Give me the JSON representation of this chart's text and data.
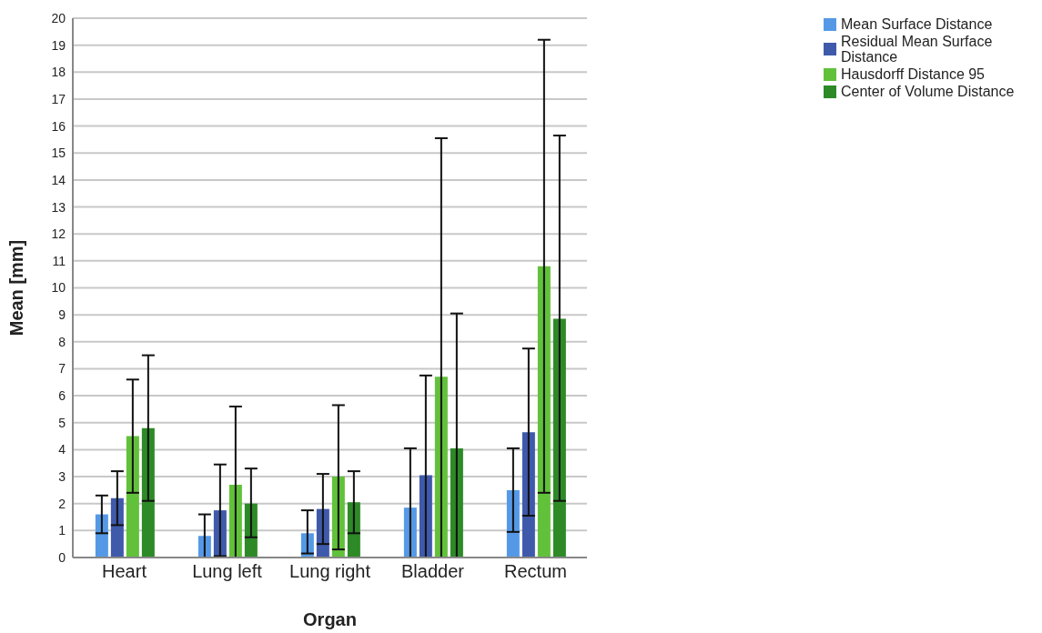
{
  "chart_data": {
    "type": "bar",
    "xlabel": "Organ",
    "ylabel": "Mean [mm]",
    "categories": [
      "Heart",
      "Lung left",
      "Lung right",
      "Bladder",
      "Rectum"
    ],
    "series": [
      {
        "name": "Mean Surface Distance",
        "color": "#5599e6",
        "values": [
          1.6,
          0.8,
          0.9,
          1.85,
          2.5
        ],
        "errors": [
          [
            0.9,
            2.3
          ],
          [
            0,
            1.6
          ],
          [
            0.15,
            1.75
          ],
          [
            0,
            4.05
          ],
          [
            0.95,
            4.05
          ]
        ]
      },
      {
        "name": "Residual Mean Surface Distance",
        "color": "#3f5aab",
        "values": [
          2.2,
          1.75,
          1.8,
          3.05,
          4.65
        ],
        "errors": [
          [
            1.2,
            3.2
          ],
          [
            0.05,
            3.45
          ],
          [
            0.5,
            3.1
          ],
          [
            0,
            6.75
          ],
          [
            1.55,
            7.75
          ]
        ]
      },
      {
        "name": "Hausdorff Distance 95",
        "color": "#62c13a",
        "values": [
          4.5,
          2.7,
          3.0,
          6.7,
          10.8
        ],
        "errors": [
          [
            2.4,
            6.6
          ],
          [
            0,
            5.6
          ],
          [
            0.3,
            5.65
          ],
          [
            0,
            15.55
          ],
          [
            2.4,
            19.2
          ]
        ]
      },
      {
        "name": "Center of Volume Distance",
        "color": "#2d8a27",
        "values": [
          4.8,
          2.0,
          2.05,
          4.05,
          8.85
        ],
        "errors": [
          [
            2.1,
            7.5
          ],
          [
            0.75,
            3.3
          ],
          [
            0.9,
            3.2
          ],
          [
            0,
            9.05
          ],
          [
            2.1,
            15.65
          ]
        ]
      }
    ],
    "ylim": [
      0,
      20
    ],
    "yticks": [
      0,
      1,
      2,
      3,
      4,
      5,
      6,
      7,
      8,
      9,
      10,
      11,
      12,
      13,
      14,
      15,
      16,
      17,
      18,
      19,
      20
    ],
    "grid": "y",
    "legend": "top right"
  }
}
